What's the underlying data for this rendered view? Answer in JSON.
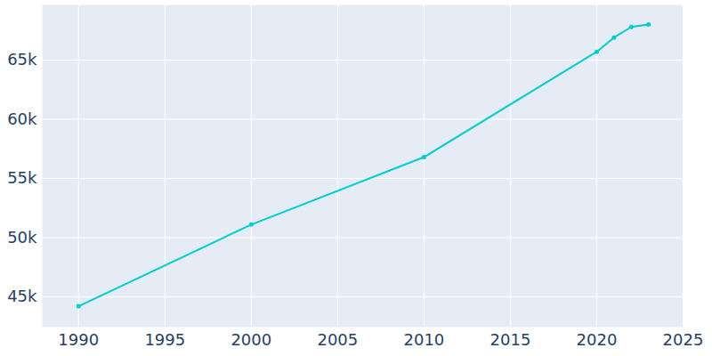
{
  "chart_data": {
    "type": "line",
    "x": [
      1990,
      2000,
      2010,
      2020,
      2021,
      2022,
      2023
    ],
    "values": [
      44200,
      51100,
      56800,
      65700,
      66900,
      67800,
      68000
    ],
    "color": "#00cccc",
    "marker": "circle",
    "xlim": [
      1987.9,
      2025
    ],
    "xticks": [
      1990,
      1995,
      2000,
      2005,
      2010,
      2015,
      2020,
      2025
    ],
    "ylim": [
      42440,
      69660
    ],
    "yticks": [
      {
        "value": 45000,
        "label": "45k"
      },
      {
        "value": 50000,
        "label": "50k"
      },
      {
        "value": 55000,
        "label": "55k"
      },
      {
        "value": 60000,
        "label": "60k"
      },
      {
        "value": 65000,
        "label": "65k"
      }
    ],
    "grid": true
  }
}
